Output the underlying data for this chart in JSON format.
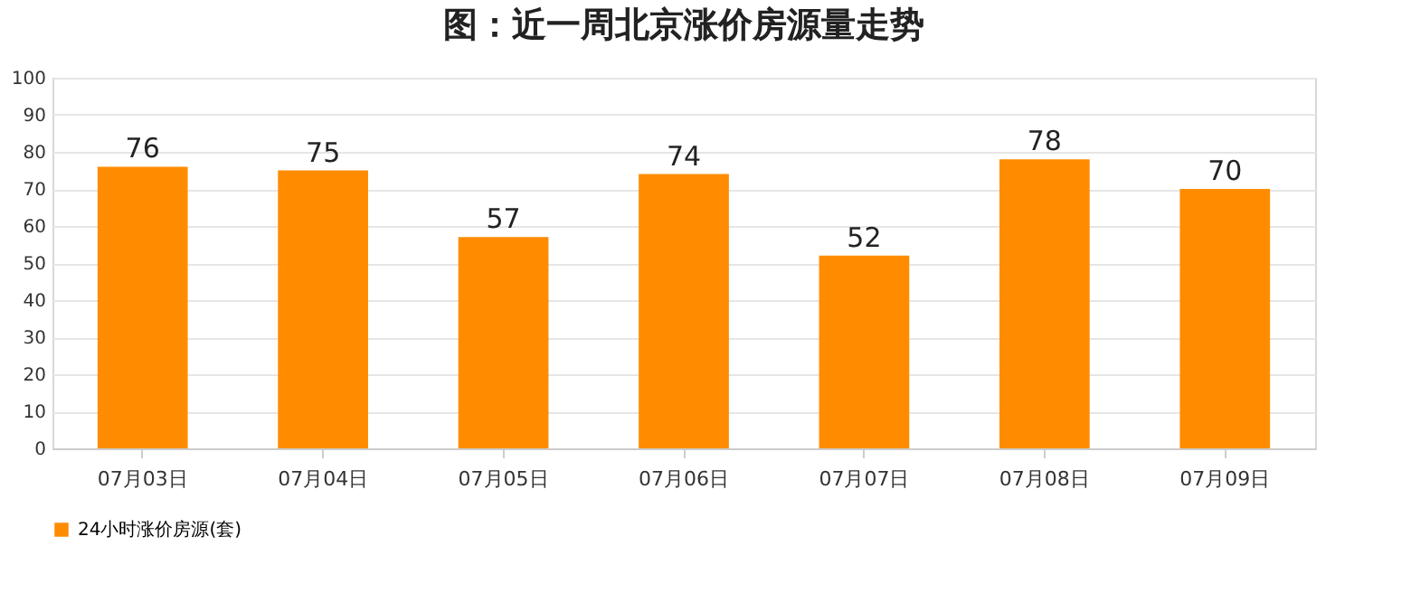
{
  "chart_data": {
    "type": "bar",
    "title": "图：近一周北京涨价房源量走势",
    "categories": [
      "07月03日",
      "07月04日",
      "07月05日",
      "07月06日",
      "07月07日",
      "07月08日",
      "07月09日"
    ],
    "series": [
      {
        "name": "24小时涨价房源(套)",
        "color": "#ff8c00",
        "values": [
          76,
          75,
          57,
          74,
          52,
          78,
          70
        ]
      }
    ],
    "ylim": [
      0,
      100
    ],
    "yticks": [
      0,
      10,
      20,
      30,
      40,
      50,
      60,
      70,
      80,
      90,
      100
    ],
    "grid": "y",
    "legend": "bottom",
    "data_labels": true
  }
}
